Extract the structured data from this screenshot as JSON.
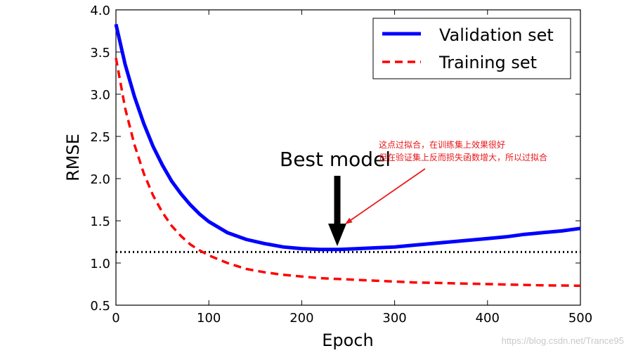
{
  "chart_data": {
    "type": "line",
    "title": "",
    "xlabel": "Epoch",
    "ylabel": "RMSE",
    "xlim": [
      0,
      500
    ],
    "ylim": [
      0.5,
      4.0
    ],
    "xticks": [
      "0",
      "100",
      "200",
      "300",
      "400",
      "500"
    ],
    "yticks": [
      "0.5",
      "1.0",
      "1.5",
      "2.0",
      "2.5",
      "3.0",
      "3.5",
      "4.0"
    ],
    "grid": false,
    "legend_position": "top-right",
    "series": [
      {
        "name": "Validation set",
        "color": "#0000ff",
        "style": "solid",
        "x": [
          0,
          10,
          20,
          30,
          40,
          50,
          60,
          70,
          80,
          90,
          100,
          120,
          140,
          160,
          180,
          200,
          220,
          240,
          260,
          280,
          300,
          320,
          340,
          360,
          380,
          400,
          420,
          440,
          460,
          480,
          500
        ],
        "y": [
          3.83,
          3.35,
          2.97,
          2.65,
          2.38,
          2.16,
          1.97,
          1.82,
          1.69,
          1.58,
          1.49,
          1.36,
          1.28,
          1.23,
          1.19,
          1.17,
          1.16,
          1.16,
          1.17,
          1.18,
          1.19,
          1.21,
          1.23,
          1.25,
          1.27,
          1.29,
          1.31,
          1.34,
          1.36,
          1.38,
          1.41
        ]
      },
      {
        "name": "Training set",
        "color": "#ff0000",
        "style": "dashed",
        "x": [
          0,
          10,
          20,
          30,
          40,
          50,
          60,
          70,
          80,
          90,
          100,
          120,
          140,
          160,
          180,
          200,
          220,
          240,
          260,
          280,
          300,
          320,
          340,
          360,
          380,
          400,
          420,
          440,
          460,
          480,
          500
        ],
        "y": [
          3.43,
          2.83,
          2.4,
          2.06,
          1.8,
          1.6,
          1.44,
          1.32,
          1.22,
          1.15,
          1.09,
          1.0,
          0.93,
          0.89,
          0.86,
          0.84,
          0.82,
          0.81,
          0.8,
          0.79,
          0.78,
          0.77,
          0.765,
          0.76,
          0.755,
          0.75,
          0.745,
          0.74,
          0.735,
          0.733,
          0.73
        ]
      }
    ],
    "reference_line": {
      "y": 1.13,
      "style": "dotted",
      "color": "#000000"
    },
    "best_model": {
      "label": "Best model",
      "x": 240,
      "y": 1.16
    },
    "note": {
      "line1": "这点过拟合，在训练集上效果很好",
      "line2": "但在验证集上反而损失函数增大，所以过拟合",
      "color": "#e8191b"
    }
  },
  "watermark": "https://blog.csdn.net/Trance95"
}
